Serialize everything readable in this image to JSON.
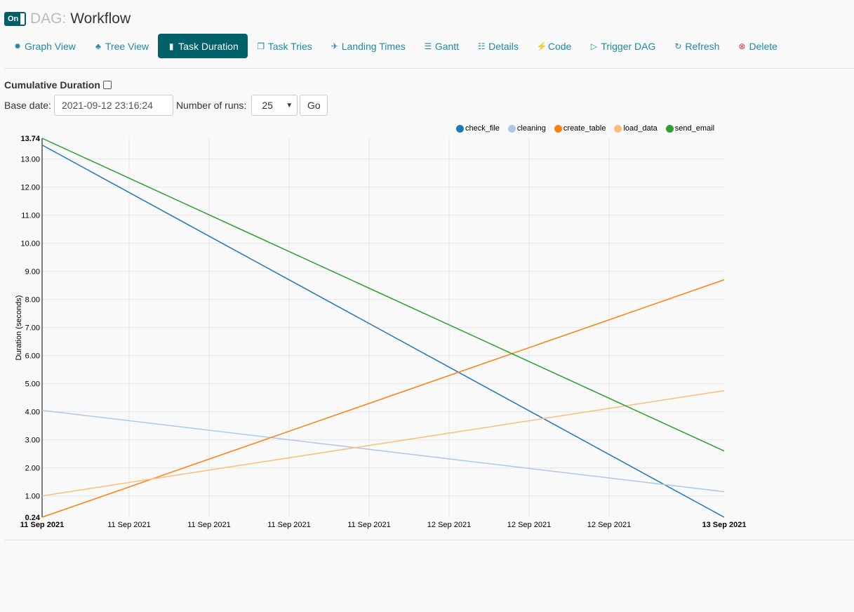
{
  "header": {
    "toggle_label": "On",
    "dag_prefix": "DAG:",
    "dag_name": "Workflow"
  },
  "nav": [
    {
      "label": "Graph View",
      "icon": "sun-icon"
    },
    {
      "label": "Tree View",
      "icon": "tree-icon"
    },
    {
      "label": "Task Duration",
      "icon": "bar-chart-icon",
      "active": true
    },
    {
      "label": "Task Tries",
      "icon": "copy-icon"
    },
    {
      "label": "Landing Times",
      "icon": "plane-icon"
    },
    {
      "label": "Gantt",
      "icon": "align-left-icon"
    },
    {
      "label": "Details",
      "icon": "list-icon"
    },
    {
      "label": "Code",
      "icon": "flash-icon"
    },
    {
      "label": "Trigger DAG",
      "icon": "play-circle-icon"
    },
    {
      "label": "Refresh",
      "icon": "refresh-icon"
    },
    {
      "label": "Delete",
      "icon": "remove-circle-icon"
    }
  ],
  "controls": {
    "cumulative_label": "Cumulative Duration",
    "base_date_label": "Base date:",
    "base_date_value": "2021-09-12 23:16:24",
    "runs_label": "Number of runs:",
    "runs_value": "25",
    "go_label": "Go"
  },
  "chart_data": {
    "type": "line",
    "ylabel": "Duration (seconds)",
    "ylim": [
      0.24,
      13.74
    ],
    "y_ticks": [
      "13.74",
      "13.00",
      "12.00",
      "11.00",
      "10.00",
      "9.00",
      "8.00",
      "7.00",
      "6.00",
      "5.00",
      "4.00",
      "3.00",
      "2.00",
      "1.00",
      "0.24"
    ],
    "x_ticks": [
      "11 Sep 2021",
      "11 Sep 2021",
      "11 Sep 2021",
      "11 Sep 2021",
      "11 Sep 2021",
      "12 Sep 2021",
      "12 Sep 2021",
      "12 Sep 2021",
      "13 Sep 2021"
    ],
    "x": [
      "11 Sep 2021",
      "13 Sep 2021"
    ],
    "grid": true,
    "legend_position": "top-right",
    "series": [
      {
        "name": "check_file",
        "color": "#1f77b4",
        "values": [
          13.5,
          0.24
        ]
      },
      {
        "name": "cleaning",
        "color": "#aec7e8",
        "values": [
          4.05,
          1.15
        ]
      },
      {
        "name": "create_table",
        "color": "#ff7f0e",
        "values": [
          0.24,
          8.7
        ]
      },
      {
        "name": "load_data",
        "color": "#ffbb78",
        "values": [
          1.0,
          4.75
        ]
      },
      {
        "name": "send_email",
        "color": "#2ca02c",
        "values": [
          13.74,
          2.6
        ]
      }
    ]
  }
}
